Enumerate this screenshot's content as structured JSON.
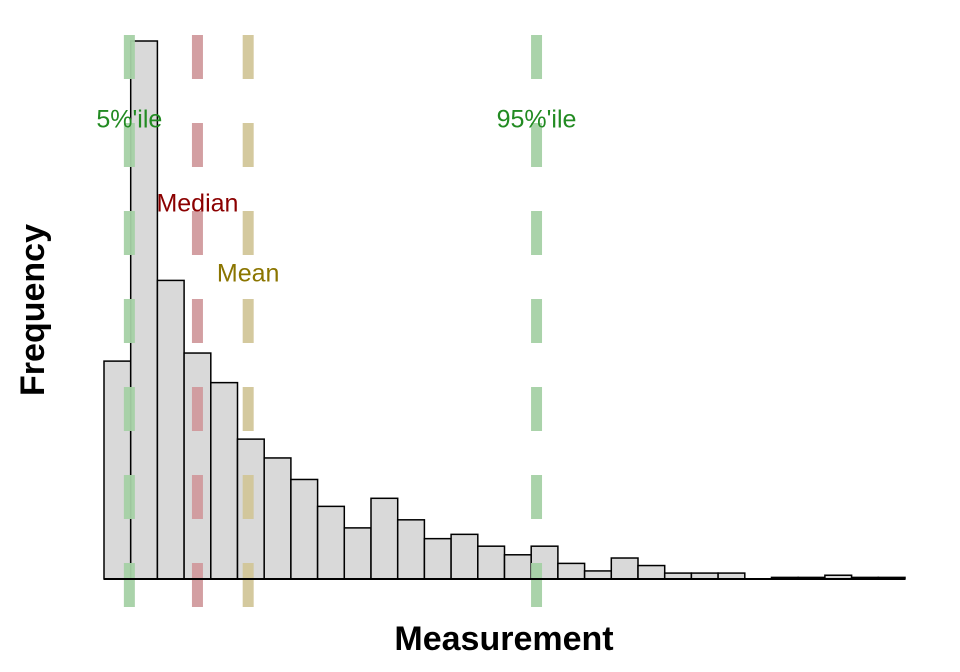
{
  "chart_data": {
    "type": "bar",
    "subtype": "histogram",
    "title": "",
    "xlabel": "Measurement",
    "ylabel": "Frequency",
    "axis_ticks": "none",
    "grid": false,
    "x_range_bins": [
      0,
      30
    ],
    "y_range": [
      0,
      100
    ],
    "bar_fill": "#d9d9d9",
    "bar_stroke": "#000000",
    "bins": [
      {
        "bin": 0,
        "count": 40.5
      },
      {
        "bin": 1,
        "count": 100
      },
      {
        "bin": 2,
        "count": 55.5
      },
      {
        "bin": 3,
        "count": 42
      },
      {
        "bin": 4,
        "count": 36.5
      },
      {
        "bin": 5,
        "count": 26
      },
      {
        "bin": 6,
        "count": 22.5
      },
      {
        "bin": 7,
        "count": 18.5
      },
      {
        "bin": 8,
        "count": 13.5
      },
      {
        "bin": 9,
        "count": 9.5
      },
      {
        "bin": 10,
        "count": 15
      },
      {
        "bin": 11,
        "count": 11
      },
      {
        "bin": 12,
        "count": 7.5
      },
      {
        "bin": 13,
        "count": 8.3
      },
      {
        "bin": 14,
        "count": 6.1
      },
      {
        "bin": 15,
        "count": 4.5
      },
      {
        "bin": 16,
        "count": 6.1
      },
      {
        "bin": 17,
        "count": 2.9
      },
      {
        "bin": 18,
        "count": 1.5
      },
      {
        "bin": 19,
        "count": 3.9
      },
      {
        "bin": 20,
        "count": 2.5
      },
      {
        "bin": 21,
        "count": 1.1
      },
      {
        "bin": 22,
        "count": 1.1
      },
      {
        "bin": 23,
        "count": 1.1
      },
      {
        "bin": 24,
        "count": 0
      },
      {
        "bin": 25,
        "count": 0.3
      },
      {
        "bin": 26,
        "count": 0.3
      },
      {
        "bin": 27,
        "count": 0.7
      },
      {
        "bin": 28,
        "count": 0.3
      },
      {
        "bin": 29,
        "count": 0.3
      }
    ],
    "reference_lines": [
      {
        "id": "p5",
        "label": "5%'ile",
        "x_bin": 0.95,
        "line_color": "#a6d1a6",
        "text_color": "#228b22",
        "label_y": 85.6
      },
      {
        "id": "median",
        "label": "Median",
        "x_bin": 3.5,
        "line_color": "#d19a9e",
        "text_color": "#8b0000",
        "label_y": 70
      },
      {
        "id": "mean",
        "label": "Mean",
        "x_bin": 5.4,
        "line_color": "#d2c799",
        "text_color": "#8b7500",
        "label_y": 57
      },
      {
        "id": "p95",
        "label": "95%'ile",
        "x_bin": 16.2,
        "line_color": "#a6d1a6",
        "text_color": "#228b22",
        "label_y": 85.6
      }
    ]
  }
}
